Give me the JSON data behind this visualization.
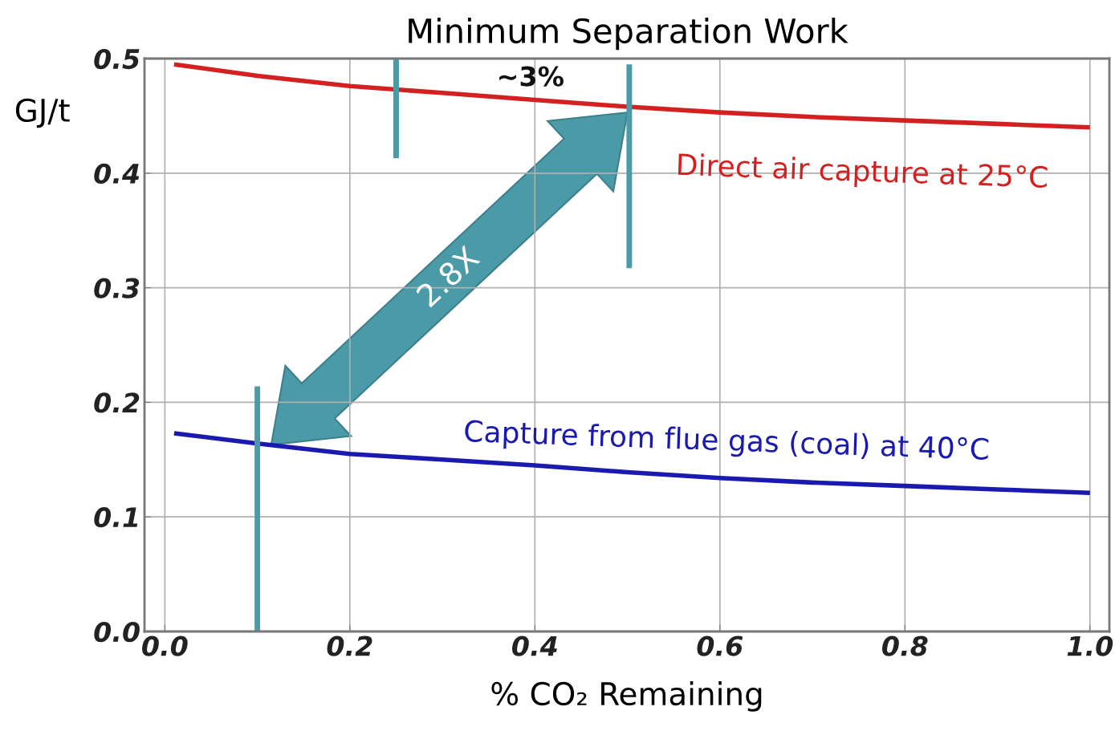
{
  "chart_data": {
    "type": "line",
    "title": "Minimum Separation Work",
    "xlabel": "% CO₂ Remaining",
    "ylabel": "GJ/t",
    "xlim": [
      -0.022,
      1.021
    ],
    "ylim": [
      0.0,
      0.5
    ],
    "xticks": [
      {
        "value": 0,
        "label": "0.0"
      },
      0.2,
      0.4,
      0.6,
      0.8,
      {
        "value": 1,
        "label": "1.0"
      }
    ],
    "yticks": [
      {
        "value": 0,
        "label": "0.0"
      },
      0.1,
      0.2,
      0.3,
      0.4,
      0.5
    ],
    "grid": true,
    "series": [
      {
        "name": "Direct air capture at 25°C",
        "color": "#d42020",
        "x": [
          0.01,
          0.1,
          0.2,
          0.3,
          0.4,
          0.5,
          0.6,
          0.7,
          0.8,
          0.9,
          1.0
        ],
        "values": [
          0.495,
          0.485,
          0.476,
          0.47,
          0.464,
          0.458,
          0.453,
          0.449,
          0.446,
          0.443,
          0.44
        ]
      },
      {
        "name": "Capture from flue gas (coal) at 40°C",
        "color": "#1a1ab0",
        "x": [
          0.01,
          0.1,
          0.2,
          0.3,
          0.4,
          0.5,
          0.6,
          0.7,
          0.8,
          0.9,
          1.0
        ],
        "values": [
          0.173,
          0.164,
          0.155,
          0.15,
          0.145,
          0.139,
          0.134,
          0.13,
          0.127,
          0.124,
          0.121
        ]
      },
      {
        "color": "#4a9aa8",
        "x": [
          0.1,
          0.1
        ],
        "values": [
          0.0,
          0.214
        ]
      },
      {
        "color": "#4a9aa8",
        "x": [
          0.25,
          0.25
        ],
        "values": [
          0.413,
          0.5
        ]
      },
      {
        "color": "#4a9aa8",
        "x": [
          0.502,
          0.502
        ],
        "values": [
          0.317,
          0.495
        ]
      }
    ],
    "annotations": [
      "~3%",
      "2.8X"
    ]
  }
}
